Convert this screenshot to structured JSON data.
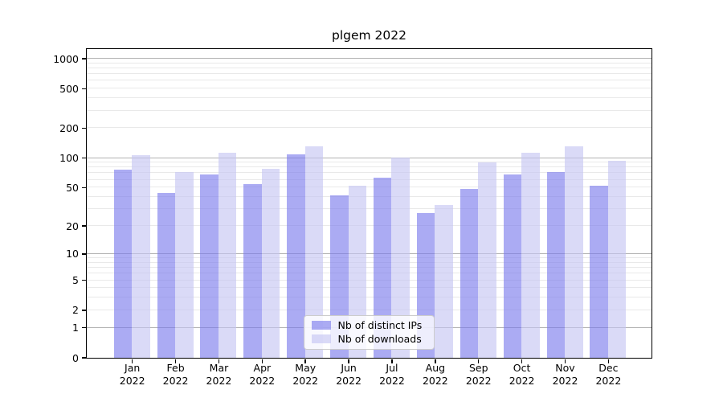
{
  "title": "plgem 2022",
  "legend": {
    "items": [
      {
        "label": "Nb of distinct IPs",
        "color_key": "ips"
      },
      {
        "label": "Nb of downloads",
        "color_key": "downloads"
      }
    ]
  },
  "colors": {
    "ips": "rgba(120,120,235,0.62)",
    "downloads": "rgba(196,196,242,0.62)",
    "major_grid": "#b2b2b2",
    "minor_grid": "#e9e9e9",
    "spine": "#000000",
    "legend_border": "#cccccc"
  },
  "y_axis": {
    "tick_labels": [
      "0",
      "1",
      "2",
      "5",
      "10",
      "20",
      "50",
      "100",
      "200",
      "500",
      "1000"
    ]
  },
  "x_axis": {
    "year": "2022"
  },
  "chart_data": {
    "type": "bar",
    "title": "plgem 2022",
    "y_scale": "log10(1+v)",
    "ylim": [
      0,
      1250
    ],
    "yticks": [
      0,
      1,
      2,
      5,
      10,
      20,
      50,
      100,
      200,
      500,
      1000
    ],
    "grid": "on",
    "legend_position": "lower center",
    "categories": [
      "Jan",
      "Feb",
      "Mar",
      "Apr",
      "May",
      "Jun",
      "Jul",
      "Aug",
      "Sep",
      "Oct",
      "Nov",
      "Dec"
    ],
    "series": [
      {
        "name": "Nb of distinct IPs",
        "values": [
          75,
          44,
          68,
          54,
          108,
          41,
          63,
          27,
          48,
          67,
          71,
          52
        ]
      },
      {
        "name": "Nb of downloads",
        "values": [
          106,
          72,
          113,
          77,
          130,
          52,
          100,
          33,
          89,
          112,
          130,
          92
        ]
      }
    ]
  }
}
